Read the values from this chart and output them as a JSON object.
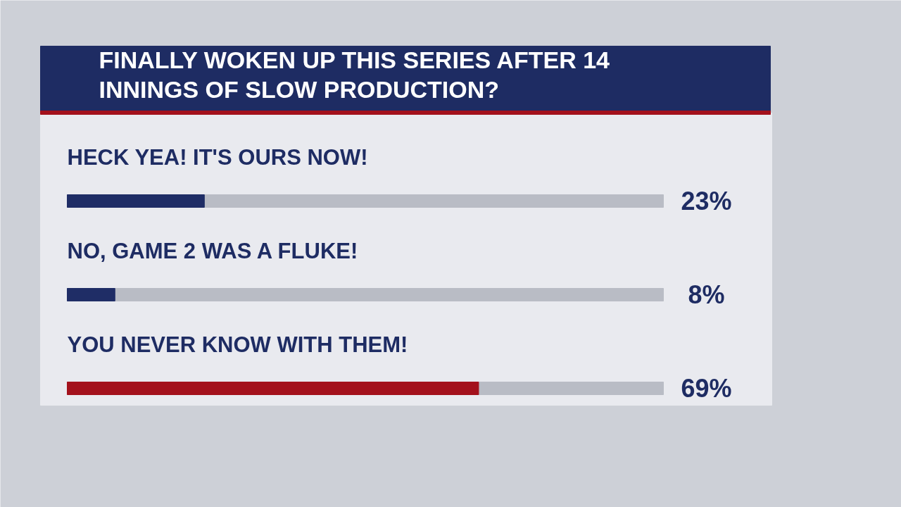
{
  "chart_data": {
    "type": "bar",
    "orientation": "horizontal",
    "title": "FINALLY WOKEN UP THIS SERIES AFTER 14 INNINGS OF SLOW PRODUCTION?",
    "categories": [
      "HECK YEA! IT'S OURS NOW!",
      "NO, GAME 2 WAS A FLUKE!",
      "YOU NEVER KNOW WITH THEM!"
    ],
    "values": [
      23,
      8,
      69
    ],
    "colors": [
      "#1f2d66",
      "#1f2d66",
      "#a3111c"
    ],
    "value_labels": [
      "23%",
      "8%",
      "69%"
    ],
    "xlim": [
      0,
      100
    ],
    "tick_labels": false,
    "grid": false
  }
}
